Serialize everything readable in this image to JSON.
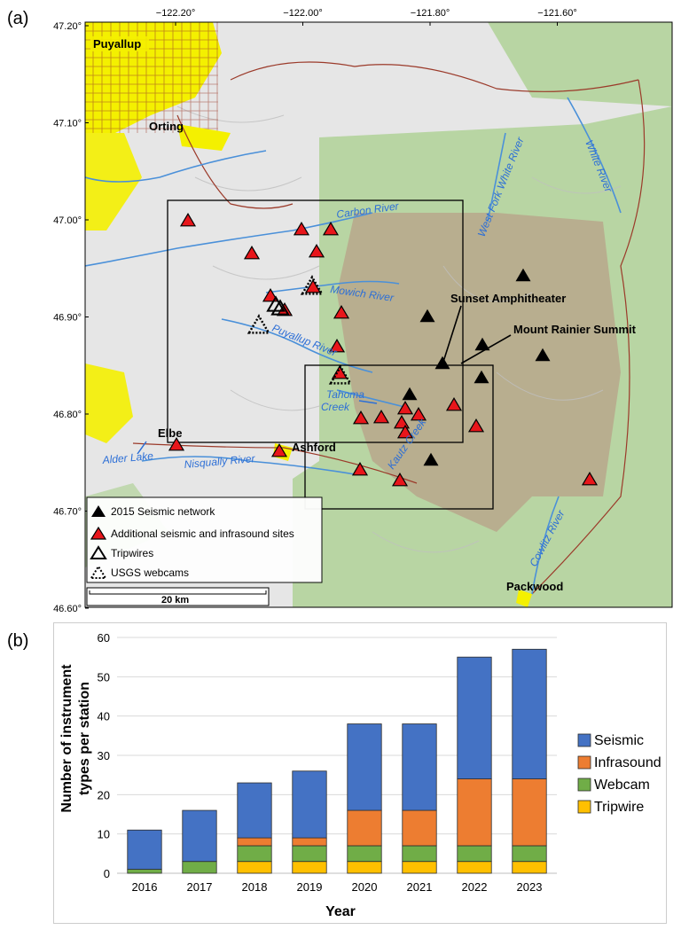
{
  "panel_labels": {
    "a": "(a)",
    "b": "(b)"
  },
  "map": {
    "lon_ticks": [
      {
        "value": -122.2,
        "label": "−122.20°"
      },
      {
        "value": -122.0,
        "label": "−122.00°"
      },
      {
        "value": -121.8,
        "label": "−121.80°"
      },
      {
        "value": -121.6,
        "label": "−121.60°"
      }
    ],
    "lat_ticks": [
      {
        "value": 47.2,
        "label": "47.20°"
      },
      {
        "value": 47.1,
        "label": "47.10°"
      },
      {
        "value": 47.0,
        "label": "47.00°"
      },
      {
        "value": 46.9,
        "label": "46.90°"
      },
      {
        "value": 46.8,
        "label": "46.80°"
      },
      {
        "value": 46.7,
        "label": "46.70°"
      },
      {
        "value": 46.6,
        "label": "46.60°"
      }
    ],
    "places": [
      {
        "name": "Puyallup"
      },
      {
        "name": "Orting"
      },
      {
        "name": "Elbe"
      },
      {
        "name": "Ashford"
      },
      {
        "name": "Packwood"
      },
      {
        "name": "Sunset Amphitheater"
      },
      {
        "name": "Mount Rainier Summit"
      }
    ],
    "rivers": [
      {
        "name": "Carbon River"
      },
      {
        "name": "Mowich River"
      },
      {
        "name": "Puyallup River"
      },
      {
        "name": "Tahoma Creek"
      },
      {
        "name": "Kautz Creek"
      },
      {
        "name": "Nisqually River"
      },
      {
        "name": "Alder Lake"
      },
      {
        "name": "West Fork White River"
      },
      {
        "name": "White River"
      },
      {
        "name": "Cowlitz River"
      }
    ],
    "legend": [
      {
        "label": "2015 Seismic network",
        "symbol": "black-triangle"
      },
      {
        "label": "Additional seismic and infrasound sites",
        "symbol": "red-triangle"
      },
      {
        "label": "Tripwires",
        "symbol": "open-triangle"
      },
      {
        "label": "USGS webcams",
        "symbol": "dotted-triangle"
      }
    ],
    "scale_bar": "20 km",
    "colors": {
      "urban": "#f4f000",
      "forest": "#a8cf8c",
      "park": "#b8a48a",
      "water": "#4a90d9",
      "red_site": "#e8161b",
      "seismic": "#000000"
    }
  },
  "chart_data": {
    "type": "bar",
    "stacked": true,
    "categories": [
      "2016",
      "2017",
      "2018",
      "2019",
      "2020",
      "2021",
      "2022",
      "2023"
    ],
    "series": [
      {
        "name": "Tripwire",
        "color": "#ffc000",
        "values": [
          0,
          0,
          3,
          3,
          3,
          3,
          3,
          3
        ]
      },
      {
        "name": "Webcam",
        "color": "#70ad47",
        "values": [
          1,
          3,
          4,
          4,
          4,
          4,
          4,
          4
        ]
      },
      {
        "name": "Infrasound",
        "color": "#ed7d31",
        "values": [
          0,
          0,
          2,
          2,
          9,
          9,
          17,
          17
        ]
      },
      {
        "name": "Seismic",
        "color": "#4472c4",
        "values": [
          10,
          13,
          14,
          17,
          22,
          22,
          31,
          33
        ]
      }
    ],
    "legend_order": [
      "Seismic",
      "Infrasound",
      "Webcam",
      "Tripwire"
    ],
    "xlabel": "Year",
    "ylabel_lines": [
      "Number of instrument",
      "types per station"
    ],
    "ylim": [
      0,
      60
    ],
    "yticks": [
      0,
      10,
      20,
      30,
      40,
      50,
      60
    ],
    "grid": true,
    "legend_position": "right"
  }
}
